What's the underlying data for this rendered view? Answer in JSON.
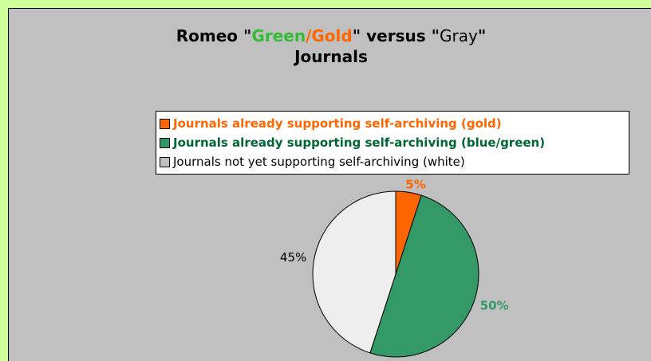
{
  "title": {
    "part1": "Romeo \"",
    "green": "Green",
    "slash": "/",
    "gold": "Gold",
    "part2": "\" versus \"",
    "gray": "Gray",
    "part3": "\"",
    "line2": "Journals"
  },
  "colors": {
    "background": "#ccff99",
    "panel": "#c0c0c0",
    "gold": "#ff6600",
    "green": "#339966",
    "white": "#eeeeee"
  },
  "chart_data": {
    "type": "pie",
    "legend_position": "top",
    "slices": [
      {
        "label": "Journals already supporting self-archiving (gold)",
        "value": 5,
        "display": "5%",
        "color": "#ff6600",
        "label_color": "#ff6600"
      },
      {
        "label": "Journals already supporting self-archiving (blue/green)",
        "value": 50,
        "display": "50%",
        "color": "#339966",
        "label_color": "#339966"
      },
      {
        "label": "Journals not yet supporting self-archiving (white)",
        "value": 45,
        "display": "45%",
        "color": "#eeeeee",
        "label_color": "#000000"
      }
    ]
  }
}
